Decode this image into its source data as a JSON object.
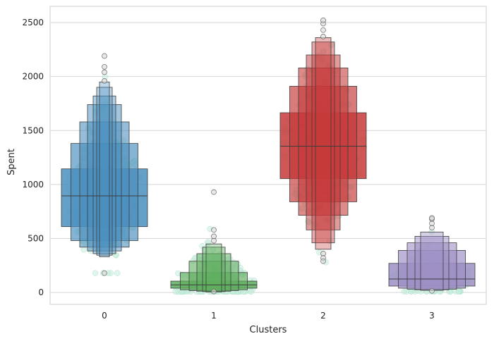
{
  "chart_data": {
    "type": "boxen",
    "title": "",
    "xlabel": "Clusters",
    "ylabel": "Spent",
    "categories": [
      "0",
      "1",
      "2",
      "3"
    ],
    "ylim": [
      -110,
      2650
    ],
    "yticks": [
      0,
      500,
      1000,
      1500,
      2000,
      2500
    ],
    "grid": "horizontal",
    "swarm_color": "#c6ecdc",
    "boxes": [
      {
        "category": "0",
        "color": "#4a8fbf",
        "levels": [
          [
            610,
            1145
          ],
          [
            480,
            1380
          ],
          [
            420,
            1580
          ],
          [
            385,
            1740
          ],
          [
            360,
            1820
          ],
          [
            345,
            1900
          ],
          [
            330,
            1950
          ]
        ],
        "median": 895,
        "outliers": [
          1960,
          2040,
          2090,
          2190,
          180
        ]
      },
      {
        "category": "1",
        "color": "#5fae5f",
        "levels": [
          [
            40,
            105
          ],
          [
            25,
            185
          ],
          [
            18,
            290
          ],
          [
            12,
            360
          ],
          [
            8,
            420
          ],
          [
            5,
            450
          ]
        ],
        "median": 70,
        "outliers": [
          480,
          520,
          580,
          930,
          10
        ]
      },
      {
        "category": "2",
        "color": "#c73a3a",
        "levels": [
          [
            1055,
            1665
          ],
          [
            840,
            1910
          ],
          [
            715,
            2080
          ],
          [
            580,
            2200
          ],
          [
            460,
            2320
          ],
          [
            400,
            2360
          ]
        ],
        "median": 1355,
        "outliers": [
          2370,
          2430,
          2490,
          2520,
          360,
          320,
          290
        ]
      },
      {
        "category": "3",
        "color": "#9e8fc6",
        "levels": [
          [
            60,
            270
          ],
          [
            40,
            390
          ],
          [
            30,
            460
          ],
          [
            25,
            520
          ],
          [
            20,
            560
          ]
        ],
        "median": 125,
        "outliers": [
          600,
          640,
          680,
          690,
          15
        ]
      }
    ],
    "swarm_ranges": [
      {
        "category": "0",
        "min": 180,
        "max": 2190,
        "center": 900
      },
      {
        "category": "1",
        "min": 8,
        "max": 930,
        "center": 80
      },
      {
        "category": "2",
        "min": 280,
        "max": 2520,
        "center": 1350
      },
      {
        "category": "3",
        "min": 10,
        "max": 690,
        "center": 140
      }
    ]
  }
}
